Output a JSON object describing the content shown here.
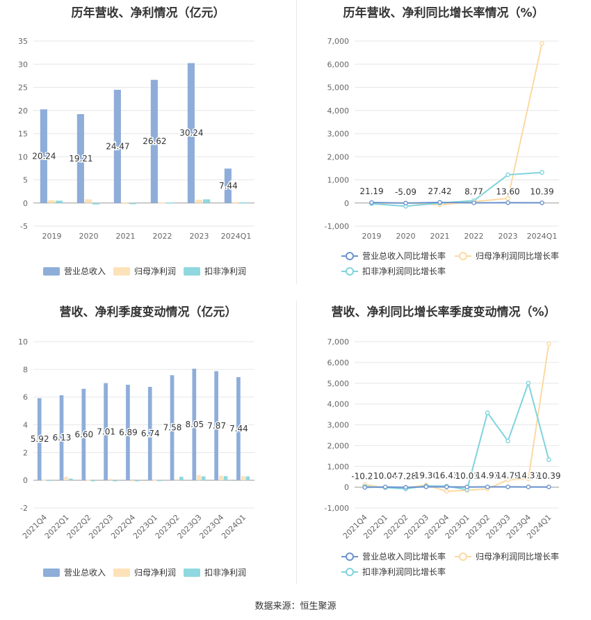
{
  "source_text": "数据来源：恒生聚源",
  "chart_data": [
    {
      "id": "annual-bar",
      "type": "bar",
      "title": "历年营收、净利情况（亿元）",
      "categories": [
        "2019",
        "2020",
        "2021",
        "2022",
        "2023",
        "2024Q1"
      ],
      "ylim": [
        -5,
        35
      ],
      "yticks": [
        -5,
        0,
        5,
        10,
        15,
        20,
        25,
        30,
        35
      ],
      "grid": true,
      "legend_position": "bottom",
      "series": [
        {
          "name": "营业总收入",
          "color": "#8eadd9",
          "values": [
            20.24,
            19.21,
            24.47,
            26.62,
            30.24,
            7.44
          ]
        },
        {
          "name": "归母净利润",
          "color": "#fde2b9",
          "values": [
            0.6,
            0.8,
            0.05,
            0.15,
            0.7,
            0.2
          ]
        },
        {
          "name": "扣非净利润",
          "color": "#8fd8df",
          "values": [
            0.5,
            -0.3,
            -0.25,
            0.1,
            0.8,
            0.15
          ]
        }
      ],
      "labels": [
        "20.24",
        "19.21",
        "24.47",
        "26.62",
        "30.24",
        "7.44"
      ]
    },
    {
      "id": "annual-growth",
      "type": "line",
      "title": "历年营收、净利同比增长率情况（%）",
      "categories": [
        "2019",
        "2020",
        "2021",
        "2022",
        "2023",
        "2024Q1"
      ],
      "ylim": [
        -1000,
        7000
      ],
      "yticks": [
        -1000,
        0,
        1000,
        2000,
        3000,
        4000,
        5000,
        6000,
        7000
      ],
      "grid": true,
      "legend_position": "bottom",
      "series": [
        {
          "name": "营业总收入同比增长率",
          "color": "#6b93cf",
          "values": [
            21.19,
            -5.09,
            27.42,
            8.77,
            13.6,
            10.39
          ]
        },
        {
          "name": "归母净利润同比增长率",
          "color": "#fcd9a0",
          "values": [
            -20,
            10,
            -80,
            60,
            200,
            6900
          ]
        },
        {
          "name": "扣非净利润同比增长率",
          "color": "#7fd3db",
          "values": [
            -30,
            -140,
            0,
            100,
            1220,
            1320
          ]
        }
      ],
      "labels": [
        "21.19",
        "-5.09",
        "27.42",
        "8.77",
        "13.60",
        "10.39"
      ]
    },
    {
      "id": "quarterly-bar",
      "type": "bar",
      "title": "营收、净利季度变动情况（亿元）",
      "categories": [
        "2021Q4",
        "2022Q1",
        "2022Q2",
        "2022Q3",
        "2022Q4",
        "2023Q1",
        "2023Q2",
        "2023Q3",
        "2023Q4",
        "2024Q1"
      ],
      "ylim": [
        -2,
        10
      ],
      "yticks": [
        -2,
        0,
        2,
        4,
        6,
        8,
        10
      ],
      "grid": true,
      "legend_position": "bottom",
      "series": [
        {
          "name": "营业总收入",
          "color": "#8eadd9",
          "values": [
            5.92,
            6.13,
            6.6,
            7.01,
            6.89,
            6.74,
            7.58,
            8.05,
            7.87,
            7.44
          ]
        },
        {
          "name": "归母净利润",
          "color": "#fde2b9",
          "values": [
            0.05,
            0.25,
            0.03,
            0.1,
            -0.05,
            0.02,
            0.08,
            0.38,
            0.33,
            0.3
          ]
        },
        {
          "name": "扣非净利润",
          "color": "#8fd8df",
          "values": [
            0.02,
            0.12,
            -0.02,
            0.0,
            -0.06,
            0.01,
            0.25,
            0.28,
            0.3,
            0.28
          ]
        }
      ],
      "labels": [
        "5.92",
        "6.13",
        "6.60",
        "7.01",
        "6.89",
        "6.74",
        "7.58",
        "8.05",
        "7.87",
        "7.44"
      ]
    },
    {
      "id": "quarterly-growth",
      "type": "line",
      "title": "营收、净利同比增长率季度变动情况（%）",
      "categories": [
        "2021Q4",
        "2022Q1",
        "2022Q2",
        "2022Q3",
        "2022Q4",
        "2023Q1",
        "2023Q2",
        "2023Q3",
        "2023Q4",
        "2024Q1"
      ],
      "ylim": [
        -1000,
        7000
      ],
      "yticks": [
        -1000,
        0,
        1000,
        2000,
        3000,
        4000,
        5000,
        6000,
        7000
      ],
      "grid": true,
      "legend_position": "bottom",
      "series": [
        {
          "name": "营业总收入同比增长率",
          "color": "#6b93cf",
          "values": [
            -10.27,
            10.04,
            -7.28,
            19.3,
            16.43,
            10.01,
            14.91,
            14.79,
            14.31,
            10.39
          ]
        },
        {
          "name": "归母净利润同比增长率",
          "color": "#fcd9a0",
          "values": [
            120,
            -30,
            -40,
            110,
            -200,
            -150,
            -80,
            350,
            400,
            6900
          ]
        },
        {
          "name": "扣非净利润同比增长率",
          "color": "#7fd3db",
          "values": [
            30,
            -20,
            -80,
            60,
            50,
            -120,
            3580,
            2220,
            5010,
            1320
          ]
        }
      ],
      "labels": [
        "-10.27",
        "10.04",
        "-7.28",
        "19.30",
        "16.43",
        "10.01",
        "14.91",
        "14.79",
        "14.31",
        "10.39"
      ]
    }
  ]
}
